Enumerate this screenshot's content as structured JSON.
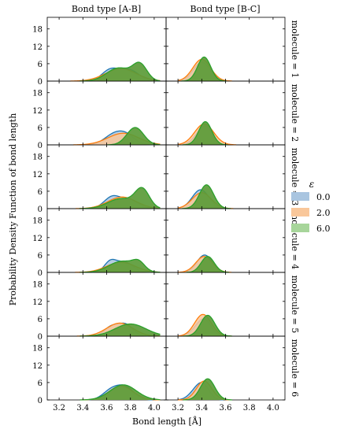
{
  "chart_data": {
    "type": "area",
    "columns": [
      "Bond type [A-B]",
      "Bond type [B-C]"
    ],
    "rows": [
      "molecule = 1",
      "molecule = 2",
      "molecule = 3",
      "molecule = 4",
      "molecule = 5",
      "molecule = 6"
    ],
    "xlabel": "Bond length [Å]",
    "ylabel": "Probability Density Function of bond length",
    "xlim": [
      3.1,
      4.1
    ],
    "ylim": [
      0,
      22
    ],
    "xticks": [
      "3.2",
      "3.4",
      "3.6",
      "3.8",
      "4.0"
    ],
    "yticks": [
      "0",
      "6",
      "12",
      "18"
    ],
    "legend": {
      "title": "ε",
      "placement": "right"
    },
    "series_labels": [
      "0.0",
      "2.0",
      "6.0"
    ],
    "colors": {
      "0.0": "#1f77b4",
      "2.0": "#ff7f0e",
      "6.0": "#2ca02c"
    },
    "fill_colors": {
      "0.0": "#a9c5e0",
      "2.0": "#f9c79a",
      "6.0": "#5b9b38"
    },
    "curves": [
      [
        [
          {
            "mu": 3.63,
            "sd": 0.07,
            "w": 0.5
          },
          {
            "mu": 3.79,
            "sd": 0.08,
            "w": 0.5
          }
        ],
        [
          {
            "mu": 3.72,
            "sd": 0.13,
            "w": 1.0
          }
        ],
        [
          {
            "mu": 3.7,
            "sd": 0.1,
            "w": 0.45
          },
          {
            "mu": 3.88,
            "sd": 0.06,
            "w": 0.55
          }
        ]
      ],
      [
        [
          {
            "mu": 3.4,
            "sd": 0.07,
            "w": 1.0
          }
        ],
        [
          {
            "mu": 3.4,
            "sd": 0.075,
            "w": 1.0
          }
        ],
        [
          {
            "mu": 3.42,
            "sd": 0.055,
            "w": 1.0
          }
        ]
      ],
      [
        [
          {
            "mu": 3.66,
            "sd": 0.08,
            "w": 0.55
          },
          {
            "mu": 3.77,
            "sd": 0.07,
            "w": 0.45
          }
        ],
        [
          {
            "mu": 3.74,
            "sd": 0.13,
            "w": 1.0
          }
        ],
        [
          {
            "mu": 3.84,
            "sd": 0.07,
            "w": 1.0
          }
        ]
      ],
      [
        [
          {
            "mu": 3.39,
            "sd": 0.06,
            "w": 0.5
          },
          {
            "mu": 3.45,
            "sd": 0.05,
            "w": 0.5
          }
        ],
        [
          {
            "mu": 3.42,
            "sd": 0.08,
            "w": 1.0
          }
        ],
        [
          {
            "mu": 3.43,
            "sd": 0.055,
            "w": 1.0
          }
        ]
      ],
      [
        [
          {
            "mu": 3.65,
            "sd": 0.07,
            "w": 0.6
          },
          {
            "mu": 3.8,
            "sd": 0.07,
            "w": 0.4
          }
        ],
        [
          {
            "mu": 3.73,
            "sd": 0.12,
            "w": 1.0
          }
        ],
        [
          {
            "mu": 3.72,
            "sd": 0.11,
            "w": 0.35
          },
          {
            "mu": 3.9,
            "sd": 0.06,
            "w": 0.65
          }
        ]
      ],
      [
        [
          {
            "mu": 3.39,
            "sd": 0.07,
            "w": 1.0
          }
        ],
        [
          {
            "mu": 3.4,
            "sd": 0.08,
            "w": 1.0
          }
        ],
        [
          {
            "mu": 3.44,
            "sd": 0.06,
            "w": 1.0
          }
        ]
      ],
      [
        [
          {
            "mu": 3.63,
            "sd": 0.05,
            "w": 0.5
          },
          {
            "mu": 3.75,
            "sd": 0.07,
            "w": 0.5
          }
        ],
        [
          {
            "mu": 3.72,
            "sd": 0.12,
            "w": 1.0
          }
        ],
        [
          {
            "mu": 3.73,
            "sd": 0.11,
            "w": 0.6
          },
          {
            "mu": 3.87,
            "sd": 0.05,
            "w": 0.4
          }
        ]
      ],
      [
        [
          {
            "mu": 3.4,
            "sd": 0.055,
            "w": 0.6
          },
          {
            "mu": 3.46,
            "sd": 0.05,
            "w": 0.4
          }
        ],
        [
          {
            "mu": 3.42,
            "sd": 0.07,
            "w": 1.0
          }
        ],
        [
          {
            "mu": 3.45,
            "sd": 0.055,
            "w": 1.0
          }
        ]
      ],
      [
        [
          {
            "mu": 3.64,
            "sd": 0.06,
            "w": 0.45
          },
          {
            "mu": 3.76,
            "sd": 0.06,
            "w": 0.55
          }
        ],
        [
          {
            "mu": 3.71,
            "sd": 0.11,
            "w": 1.0
          }
        ],
        [
          {
            "mu": 3.8,
            "sd": 0.13,
            "w": 1.0
          }
        ]
      ],
      [
        [
          {
            "mu": 3.38,
            "sd": 0.06,
            "w": 0.5
          },
          {
            "mu": 3.44,
            "sd": 0.05,
            "w": 0.5
          }
        ],
        [
          {
            "mu": 3.41,
            "sd": 0.07,
            "w": 1.0
          }
        ],
        [
          {
            "mu": 3.45,
            "sd": 0.06,
            "w": 1.0
          }
        ]
      ],
      [
        [
          {
            "mu": 3.64,
            "sd": 0.07,
            "w": 0.45
          },
          {
            "mu": 3.76,
            "sd": 0.07,
            "w": 0.55
          }
        ],
        [
          {
            "mu": 3.72,
            "sd": 0.1,
            "w": 1.0
          }
        ],
        [
          {
            "mu": 3.74,
            "sd": 0.11,
            "w": 1.0
          }
        ]
      ],
      [
        [
          {
            "mu": 3.36,
            "sd": 0.06,
            "w": 0.5
          },
          {
            "mu": 3.42,
            "sd": 0.05,
            "w": 0.5
          }
        ],
        [
          {
            "mu": 3.42,
            "sd": 0.065,
            "w": 1.0
          }
        ],
        [
          {
            "mu": 3.45,
            "sd": 0.06,
            "w": 1.0
          }
        ]
      ]
    ],
    "peaks": [
      [
        [
          4.5,
          4.3,
          6.5
        ],
        [
          6.5,
          7.5,
          8.3
        ]
      ],
      [
        [
          4.8,
          4.0,
          6.0
        ],
        [
          6.5,
          7.2,
          8.0
        ]
      ],
      [
        [
          4.5,
          4.0,
          7.3
        ],
        [
          6.5,
          5.5,
          8.2
        ]
      ],
      [
        [
          4.5,
          3.5,
          4.5
        ],
        [
          6.0,
          5.5,
          5.5
        ]
      ],
      [
        [
          4.5,
          4.5,
          4.2
        ],
        [
          6.0,
          7.5,
          7.2
        ]
      ],
      [
        [
          5.2,
          4.8,
          5.2
        ],
        [
          6.0,
          6.5,
          7.3
        ]
      ]
    ]
  }
}
